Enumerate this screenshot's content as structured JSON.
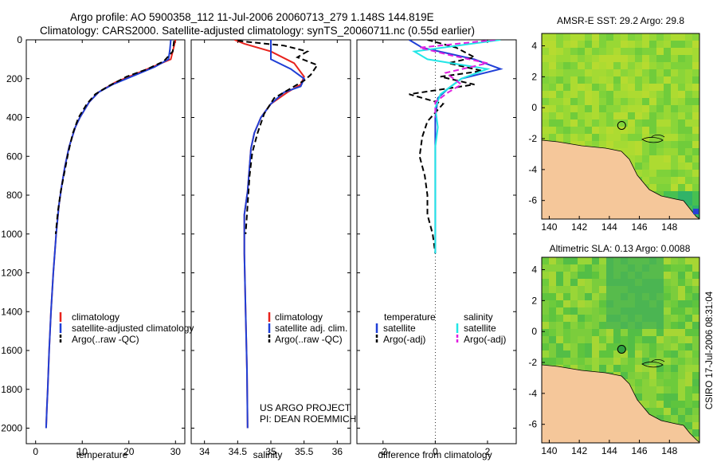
{
  "header": {
    "title_line1": "Argo profile: AO 5900358_112 11-Jul-2006 20060713_279 1.148S 144.819E",
    "title_line2": "Climatology: CARS2000. Satellite-adjusted climatology: synTS_20060711.nc (0.55d earlier)"
  },
  "side_note": "CSIRO 17-Jul-2006 08:31:04",
  "project_note": {
    "line1": "US ARGO PROJECT",
    "line2": "PI: DEAN ROEMMICH"
  },
  "colors": {
    "climatology": "#e8231d",
    "satellite": "#1f3fd6",
    "argo": "#000000",
    "sal_satellite": "#22e6e6",
    "sal_argo": "#e020e0",
    "land": "#f5c79a",
    "sea_low": "#12a27a",
    "sea_mid": "#55c23b",
    "sea_high": "#dde030"
  },
  "chart_data": [
    {
      "type": "line",
      "id": "temperature",
      "xlabel": "temperature",
      "ylabel": "",
      "xlim": [
        -2,
        32
      ],
      "ylim": [
        0,
        2080
      ],
      "y_inverted": true,
      "xticks": [
        0,
        10,
        20,
        30
      ],
      "yticks": [
        0,
        200,
        400,
        600,
        800,
        1000,
        1200,
        1400,
        1600,
        1800,
        2000
      ],
      "legend": [
        {
          "label": "climatology",
          "color": "#e8231d"
        },
        {
          "label": "satellite-adjusted climatology",
          "color": "#1f3fd6"
        },
        {
          "label": "Argo(..raw -QC)",
          "color": "#000000"
        }
      ],
      "series": [
        {
          "name": "climatology",
          "color": "#e8231d",
          "dash": "",
          "x": [
            30.0,
            29.5,
            29.0,
            26.0,
            22.0,
            17.0,
            13.5,
            11.5,
            9.5,
            8.5,
            7.2,
            6.3,
            5.6,
            5.0,
            4.4,
            3.8,
            3.3,
            2.9,
            2.6,
            2.4,
            2.25
          ],
          "y": [
            0,
            50,
            100,
            130,
            170,
            220,
            270,
            320,
            400,
            450,
            550,
            650,
            750,
            850,
            1000,
            1200,
            1400,
            1600,
            1800,
            1900,
            2000
          ]
        },
        {
          "name": "satellite-adjusted climatology",
          "color": "#1f3fd6",
          "dash": "",
          "x": [
            29.0,
            28.8,
            28.5,
            25.5,
            21.5,
            16.5,
            13.5,
            11.5,
            9.5,
            8.5,
            7.2,
            6.3,
            5.6,
            5.0,
            4.4,
            3.8,
            3.3,
            2.9,
            2.6,
            2.4,
            2.25
          ],
          "y": [
            0,
            50,
            100,
            140,
            180,
            230,
            270,
            320,
            400,
            450,
            550,
            650,
            750,
            850,
            1000,
            1200,
            1400,
            1600,
            1800,
            1900,
            2000
          ]
        },
        {
          "name": "Argo(..raw -QC)",
          "color": "#000000",
          "dash": "7,4",
          "x": [
            29.7,
            29.4,
            27.5,
            24.0,
            19.5,
            15.5,
            12.8,
            11.0,
            9.2,
            8.0,
            7.0,
            6.2,
            5.4,
            4.8,
            4.3
          ],
          "y": [
            5,
            60,
            110,
            150,
            190,
            240,
            280,
            330,
            400,
            480,
            580,
            680,
            780,
            880,
            1000
          ]
        }
      ]
    },
    {
      "type": "line",
      "id": "salinity",
      "xlabel": "salinity",
      "xlim": [
        33.8,
        36.2
      ],
      "ylim": [
        0,
        2080
      ],
      "y_inverted": true,
      "xticks": [
        34,
        34.5,
        35,
        35.5,
        36
      ],
      "xticklabels": [
        "34",
        "34.5",
        "35",
        "35.5",
        "36"
      ],
      "legend": [
        {
          "label": "climatology",
          "color": "#e8231d"
        },
        {
          "label": "satellite adj. clim.",
          "color": "#1f3fd6"
        },
        {
          "label": "Argo(..raw -QC)",
          "color": "#000000"
        }
      ],
      "series": [
        {
          "name": "climatology",
          "color": "#e8231d",
          "dash": "",
          "x": [
            34.45,
            34.6,
            35.0,
            35.35,
            35.5,
            35.45,
            35.25,
            35.0,
            34.85,
            34.75,
            34.7,
            34.68,
            34.65,
            34.6,
            34.6,
            34.62,
            34.64,
            34.65
          ],
          "y": [
            0,
            20,
            60,
            120,
            190,
            230,
            270,
            330,
            400,
            480,
            560,
            650,
            780,
            900,
            1100,
            1400,
            1700,
            2000
          ]
        },
        {
          "name": "satellite adj. clim.",
          "color": "#1f3fd6",
          "dash": "",
          "x": [
            35.0,
            35.0,
            35.0,
            35.3,
            35.5,
            35.45,
            35.2,
            35.0,
            34.85,
            34.75,
            34.7,
            34.68,
            34.65,
            34.6,
            34.6,
            34.62,
            34.64,
            34.65
          ],
          "y": [
            0,
            50,
            100,
            150,
            200,
            240,
            270,
            330,
            400,
            480,
            560,
            650,
            780,
            900,
            1100,
            1400,
            1700,
            2000
          ]
        },
        {
          "name": "Argo(..raw -QC)",
          "color": "#000000",
          "dash": "7,4",
          "x": [
            34.5,
            35.2,
            35.55,
            35.4,
            35.7,
            35.6,
            35.5,
            35.3,
            35.05,
            34.9,
            34.8,
            34.72,
            34.68,
            34.65,
            34.62
          ],
          "y": [
            5,
            30,
            60,
            90,
            130,
            180,
            210,
            250,
            300,
            380,
            480,
            580,
            700,
            850,
            1000
          ]
        }
      ]
    },
    {
      "type": "line",
      "id": "difference",
      "xlabel": "difference from climatology",
      "xlim": [
        -3,
        3.1
      ],
      "ylim": [
        0,
        2080
      ],
      "y_inverted": true,
      "xticks": [
        -2,
        0,
        2
      ],
      "legend_header_left": "temperature",
      "legend_header_right": "salinity",
      "legend": [
        {
          "label": "satellite",
          "color": "#1f3fd6"
        },
        {
          "label": "Argo(-adj)",
          "color": "#000000"
        },
        {
          "label": "satellite",
          "color": "#22e6e6"
        },
        {
          "label": "Argo(-adj)",
          "color": "#e020e0"
        }
      ],
      "series": [
        {
          "name": "temperature satellite",
          "color": "#1f3fd6",
          "dash": "",
          "x": [
            -1.0,
            -0.5,
            0.5,
            1.5,
            2.5,
            1.0,
            0.5,
            0.1,
            0.0,
            0.0,
            0.0,
            0.0,
            0.0,
            0.0,
            0.0,
            0.0,
            0.0
          ],
          "y": [
            0,
            40,
            70,
            100,
            150,
            200,
            250,
            300,
            400,
            500,
            600,
            700,
            800,
            900,
            1000,
            1050,
            1100
          ]
        },
        {
          "name": "temperature Argo(-adj)",
          "color": "#000000",
          "dash": "7,4",
          "x": [
            -0.3,
            0.8,
            1.5,
            0.5,
            1.8,
            0.2,
            1.5,
            -1.0,
            0.3,
            -0.3,
            -0.5,
            -0.6,
            -0.4,
            -0.3,
            -0.3,
            -0.2,
            -0.1,
            0.0
          ],
          "y": [
            0,
            40,
            90,
            120,
            160,
            190,
            230,
            280,
            330,
            420,
            500,
            600,
            700,
            800,
            900,
            950,
            1000,
            1100
          ]
        },
        {
          "name": "salinity satellite",
          "color": "#22e6e6",
          "dash": "",
          "x": [
            2.5,
            -0.8,
            -0.3,
            2.0,
            1.0,
            0.2,
            0.0,
            0.1,
            0.0,
            0.0,
            0.0,
            0.0,
            0.0,
            0.0
          ],
          "y": [
            0,
            60,
            100,
            150,
            200,
            280,
            350,
            450,
            550,
            650,
            800,
            900,
            1000,
            1100
          ]
        },
        {
          "name": "salinity Argo(-adj)",
          "color": "#e020e0",
          "dash": "7,4",
          "x": [
            2.3,
            -0.6,
            0.6,
            2.0,
            0.4,
            1.0,
            0.5,
            0.0,
            0.0
          ],
          "y": [
            0,
            40,
            80,
            120,
            170,
            230,
            270,
            320,
            400
          ]
        }
      ]
    },
    {
      "type": "heatmap",
      "id": "amsr-map",
      "title": "AMSR-E SST: 29.2  Argo: 29.8",
      "xlim": [
        139.5,
        150
      ],
      "ylim": [
        -7.2,
        4.8
      ],
      "xticks": [
        140,
        142,
        144,
        146,
        148
      ],
      "yticks": [
        4,
        2,
        0,
        -2,
        -4,
        -6
      ],
      "marker": {
        "x": 144.819,
        "y": -1.148
      }
    },
    {
      "type": "heatmap",
      "id": "sla-map",
      "title": "Altimetric SLA: 0.13  Argo: 0.0088",
      "xlim": [
        139.5,
        150
      ],
      "ylim": [
        -7.2,
        4.8
      ],
      "xticks": [
        140,
        142,
        144,
        146,
        148
      ],
      "yticks": [
        4,
        2,
        0,
        -2,
        -4,
        -6
      ],
      "marker": {
        "x": 144.819,
        "y": -1.148
      }
    }
  ]
}
